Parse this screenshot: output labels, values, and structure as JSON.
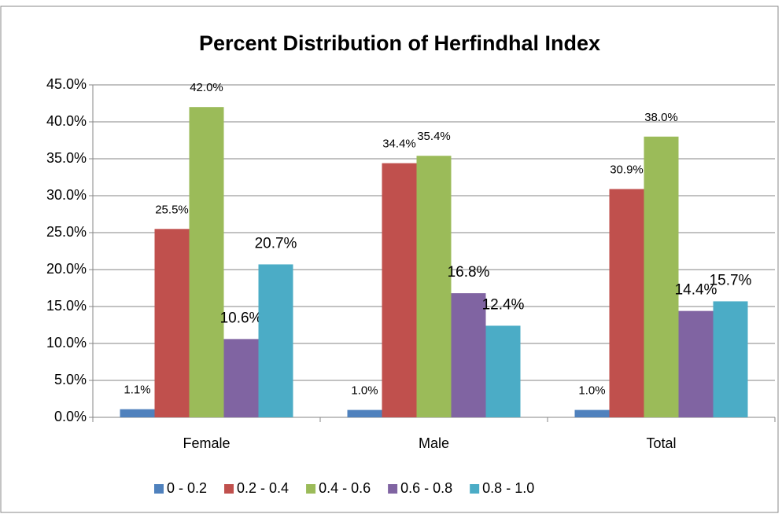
{
  "chart_data": {
    "type": "bar",
    "title": "Percent Distribution of Herfindhal Index",
    "categories": [
      "Female",
      "Male",
      "Total"
    ],
    "series": [
      {
        "name": "0 - 0.2",
        "color": "#4f81bd",
        "values": [
          1.1,
          1.0,
          1.0
        ],
        "value_labels": [
          "1.1%",
          "1.0%",
          "1.0%"
        ]
      },
      {
        "name": "0.2 - 0.4",
        "color": "#c0504d",
        "values": [
          25.5,
          34.4,
          30.9
        ],
        "value_labels": [
          "25.5%",
          "34.4%",
          "30.9%"
        ]
      },
      {
        "name": "0.4 - 0.6",
        "color": "#9bbb59",
        "values": [
          42.0,
          35.4,
          38.0
        ],
        "value_labels": [
          "42.0%",
          "35.4%",
          "38.0%"
        ]
      },
      {
        "name": "0.6 - 0.8",
        "color": "#8064a2",
        "values": [
          10.6,
          16.8,
          14.4
        ],
        "value_labels": [
          "10.6%",
          "16.8%",
          "14.4%"
        ]
      },
      {
        "name": "0.8 - 1.0",
        "color": "#4bacc6",
        "values": [
          20.7,
          12.4,
          15.7
        ],
        "value_labels": [
          "20.7%",
          "12.4%",
          "15.7%"
        ]
      }
    ],
    "ylim": [
      0,
      45
    ],
    "yticks": [
      {
        "value": 0,
        "label": "0.0%"
      },
      {
        "value": 5,
        "label": "5.0%"
      },
      {
        "value": 10,
        "label": "10.0%"
      },
      {
        "value": 15,
        "label": "15.0%"
      },
      {
        "value": 20,
        "label": "20.0%"
      },
      {
        "value": 25,
        "label": "25.0%"
      },
      {
        "value": 30,
        "label": "30.0%"
      },
      {
        "value": 35,
        "label": "35.0%"
      },
      {
        "value": 40,
        "label": "40.0%"
      },
      {
        "value": 45,
        "label": "45.0%"
      }
    ],
    "grid": true,
    "legend": "bottom"
  }
}
